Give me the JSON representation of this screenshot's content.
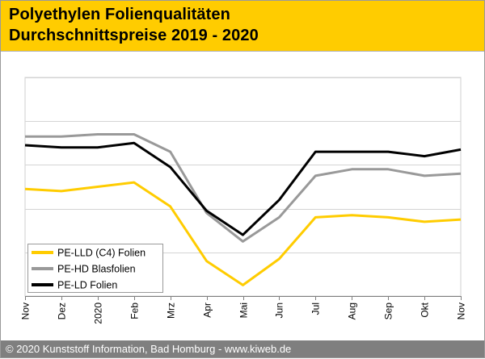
{
  "header": {
    "title_line1": "Polyethylen Folienqualitäten",
    "title_line2": "Durchschnittspreise 2019 - 2020",
    "background_color": "#ffcc00"
  },
  "footer": {
    "copyright": "© 2020 Kunststoff Information, Bad Homburg - www.kiweb.de",
    "background_color": "#7f7f7f"
  },
  "chart_data": {
    "type": "line",
    "title": "Polyethylen Folienqualitäten Durchschnittspreise 2019 - 2020",
    "categories": [
      "Nov",
      "Dez",
      "2020",
      "Feb",
      "Mrz",
      "Apr",
      "Mai",
      "Jun",
      "Jul",
      "Aug",
      "Sep",
      "Okt",
      "Nov"
    ],
    "ylim": [
      0,
      100
    ],
    "y_gridlines": [
      20,
      40,
      60,
      80,
      100
    ],
    "y_ticks_labeled": false,
    "legend_position": "bottom-left",
    "series": [
      {
        "name": "PE-LLD (C4) Folien",
        "color": "#ffcc00",
        "values": [
          49,
          48,
          50,
          52,
          41,
          16,
          5,
          17,
          36,
          37,
          36,
          34,
          35
        ]
      },
      {
        "name": "PE-HD Blasfolien",
        "color": "#999999",
        "values": [
          73,
          73,
          74,
          74,
          66,
          38,
          25,
          36,
          55,
          58,
          58,
          55,
          56
        ]
      },
      {
        "name": "PE-LD Folien",
        "color": "#000000",
        "values": [
          69,
          68,
          68,
          70,
          59,
          39,
          28,
          44,
          66,
          66,
          66,
          64,
          67
        ]
      }
    ]
  }
}
